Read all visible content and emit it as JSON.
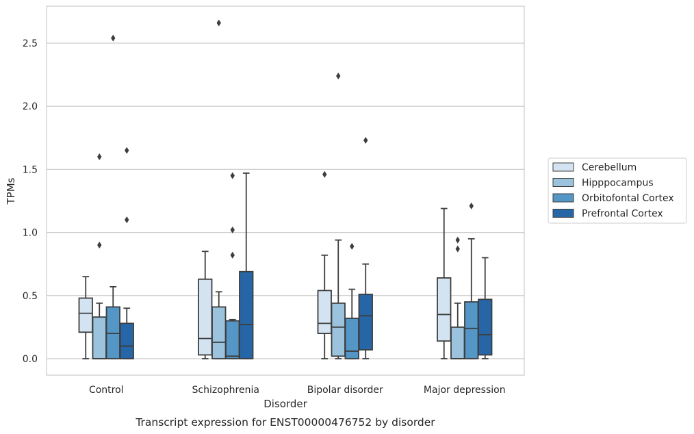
{
  "chart_data": {
    "type": "box",
    "caption": "Transcript expression for ENST00000476752 by disorder",
    "xlabel": "Disorder",
    "ylabel": "TPMs",
    "ylim": [
      -0.13,
      2.85
    ],
    "yticks": [
      "0.0",
      "0.5",
      "1.0",
      "1.5",
      "2.0",
      "2.5"
    ],
    "ytick_values": [
      0.0,
      0.5,
      1.0,
      1.5,
      2.0,
      2.5
    ],
    "categories": [
      "Control",
      "Schizophrenia",
      "Bipolar disorder",
      "Major depression"
    ],
    "grid": true,
    "legend_position": "right",
    "series": [
      {
        "name": "Cerebellum",
        "color": "#d4e3f1",
        "boxes": [
          {
            "whislo": 0.0,
            "q1": 0.21,
            "med": 0.36,
            "q3": 0.48,
            "whishi": 0.65,
            "fliers": []
          },
          {
            "whislo": 0.0,
            "q1": 0.03,
            "med": 0.16,
            "q3": 0.63,
            "whishi": 0.85,
            "fliers": []
          },
          {
            "whislo": 0.0,
            "q1": 0.2,
            "med": 0.28,
            "q3": 0.54,
            "whishi": 0.82,
            "fliers": [
              1.46
            ]
          },
          {
            "whislo": 0.0,
            "q1": 0.14,
            "med": 0.35,
            "q3": 0.64,
            "whishi": 1.19,
            "fliers": []
          }
        ]
      },
      {
        "name": "Hipppocampus",
        "color": "#9bc3de",
        "boxes": [
          {
            "whislo": 0.0,
            "q1": 0.0,
            "med": 0.0,
            "q3": 0.33,
            "whishi": 0.44,
            "fliers": [
              0.9,
              1.6
            ]
          },
          {
            "whislo": 0.0,
            "q1": 0.0,
            "med": 0.13,
            "q3": 0.41,
            "whishi": 0.53,
            "fliers": [
              2.66
            ]
          },
          {
            "whislo": 0.0,
            "q1": 0.02,
            "med": 0.25,
            "q3": 0.44,
            "whishi": 0.94,
            "fliers": [
              2.24
            ]
          },
          {
            "whislo": 0.0,
            "q1": 0.0,
            "med": 0.0,
            "q3": 0.25,
            "whishi": 0.44,
            "fliers": [
              0.87,
              0.94
            ]
          }
        ]
      },
      {
        "name": "Orbitofontal Cortex",
        "color": "#5496c6",
        "boxes": [
          {
            "whislo": 0.0,
            "q1": 0.0,
            "med": 0.2,
            "q3": 0.41,
            "whishi": 0.57,
            "fliers": [
              2.54
            ]
          },
          {
            "whislo": 0.0,
            "q1": 0.0,
            "med": 0.02,
            "q3": 0.3,
            "whishi": 0.31,
            "fliers": [
              0.82,
              1.02,
              1.45
            ]
          },
          {
            "whislo": 0.0,
            "q1": 0.0,
            "med": 0.06,
            "q3": 0.32,
            "whishi": 0.55,
            "fliers": [
              0.89
            ]
          },
          {
            "whislo": 0.0,
            "q1": 0.0,
            "med": 0.24,
            "q3": 0.45,
            "whishi": 0.95,
            "fliers": [
              1.21
            ]
          }
        ]
      },
      {
        "name": "Prefrontal Cortex",
        "color": "#2766a6",
        "boxes": [
          {
            "whislo": 0.0,
            "q1": 0.0,
            "med": 0.1,
            "q3": 0.28,
            "whishi": 0.4,
            "fliers": [
              1.1,
              1.65
            ]
          },
          {
            "whislo": 0.0,
            "q1": 0.0,
            "med": 0.27,
            "q3": 0.69,
            "whishi": 1.47,
            "fliers": []
          },
          {
            "whislo": 0.0,
            "q1": 0.07,
            "med": 0.34,
            "q3": 0.51,
            "whishi": 0.75,
            "fliers": [
              1.73
            ]
          },
          {
            "whislo": 0.0,
            "q1": 0.03,
            "med": 0.19,
            "q3": 0.47,
            "whishi": 0.8,
            "fliers": []
          }
        ]
      }
    ]
  }
}
